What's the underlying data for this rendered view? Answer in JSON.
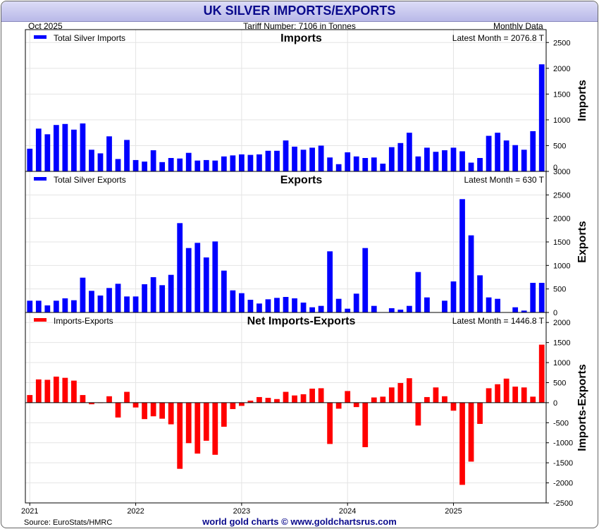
{
  "header": {
    "title": "UK SILVER IMPORTS/EXPORTS",
    "date": "Oct  2025",
    "tariff": "Tariff Number: 7106 in Tonnes",
    "frequency": "Monthly Data"
  },
  "footer": {
    "source": "Source: EuroStats/HMRC",
    "credit": "world gold charts © www.goldchartsrus.com"
  },
  "colors": {
    "imports": "#0000ff",
    "exports": "#0000ff",
    "net": "#ff0000",
    "grid": "#e4e4e4"
  },
  "chart_data": [
    {
      "type": "bar",
      "panel": "imports",
      "title": "Imports",
      "ylabel": "Imports",
      "legend": "Total Silver Imports",
      "latest_label": "Latest Month = 2076.8 T",
      "ylim": [
        0,
        2750
      ],
      "yticks": [
        0,
        500,
        1000,
        1500,
        2000,
        2500
      ],
      "series": [
        {
          "name": "Total Silver Imports",
          "values": [
            440,
            830,
            720,
            900,
            920,
            810,
            930,
            420,
            350,
            680,
            240,
            610,
            220,
            190,
            410,
            180,
            260,
            250,
            360,
            210,
            220,
            210,
            290,
            310,
            330,
            320,
            330,
            400,
            400,
            600,
            480,
            420,
            460,
            500,
            270,
            140,
            370,
            290,
            260,
            270,
            150,
            470,
            550,
            750,
            290,
            460,
            380,
            410,
            460,
            390,
            170,
            260,
            690,
            750,
            600,
            510,
            420,
            780,
            2077
          ]
        }
      ]
    },
    {
      "type": "bar",
      "panel": "exports",
      "title": "Exports",
      "ylabel": "Exports",
      "legend": "Total Silver Exports",
      "latest_label": "Latest Month = 630 T",
      "ylim": [
        0,
        3000
      ],
      "yticks": [
        0,
        500,
        1000,
        1500,
        2000,
        2500,
        3000
      ],
      "series": [
        {
          "name": "Total Silver Exports",
          "values": [
            250,
            250,
            150,
            250,
            300,
            260,
            740,
            460,
            360,
            520,
            610,
            340,
            340,
            600,
            750,
            580,
            800,
            1900,
            1370,
            1480,
            1170,
            1510,
            890,
            470,
            410,
            270,
            190,
            280,
            310,
            330,
            300,
            210,
            110,
            140,
            1300,
            290,
            80,
            400,
            1370,
            140,
            0,
            90,
            60,
            140,
            860,
            320,
            0,
            250,
            660,
            2410,
            1640,
            790,
            320,
            290,
            0,
            110,
            40,
            630,
            630
          ]
        }
      ]
    },
    {
      "type": "bar",
      "panel": "net",
      "title": "Net Imports-Exports",
      "ylabel": "Imports-Exports",
      "legend": "Imports-Exports",
      "latest_label": "Latest Month = 1446.8 T",
      "ylim": [
        -2500,
        2250
      ],
      "yticks": [
        -2500,
        -2000,
        -1500,
        -1000,
        -500,
        0,
        500,
        1000,
        1500,
        2000
      ],
      "series": [
        {
          "name": "Imports-Exports",
          "values": [
            190,
            580,
            570,
            650,
            620,
            550,
            190,
            -40,
            -10,
            160,
            -370,
            270,
            -120,
            -410,
            -340,
            -400,
            -540,
            -1650,
            -1010,
            -1270,
            -950,
            -1300,
            -600,
            -160,
            -80,
            50,
            140,
            120,
            90,
            270,
            180,
            210,
            350,
            360,
            -1030,
            -150,
            290,
            -110,
            -1110,
            130,
            150,
            380,
            490,
            610,
            -570,
            140,
            380,
            160,
            -200,
            -2050,
            -1470,
            -530,
            360,
            460,
            600,
            400,
            380,
            150,
            1447
          ]
        }
      ]
    }
  ],
  "x_axis": {
    "labels": [
      "2021",
      "2022",
      "2023",
      "2024",
      "2025"
    ],
    "label_month_index": [
      0,
      12,
      24,
      36,
      48
    ]
  }
}
